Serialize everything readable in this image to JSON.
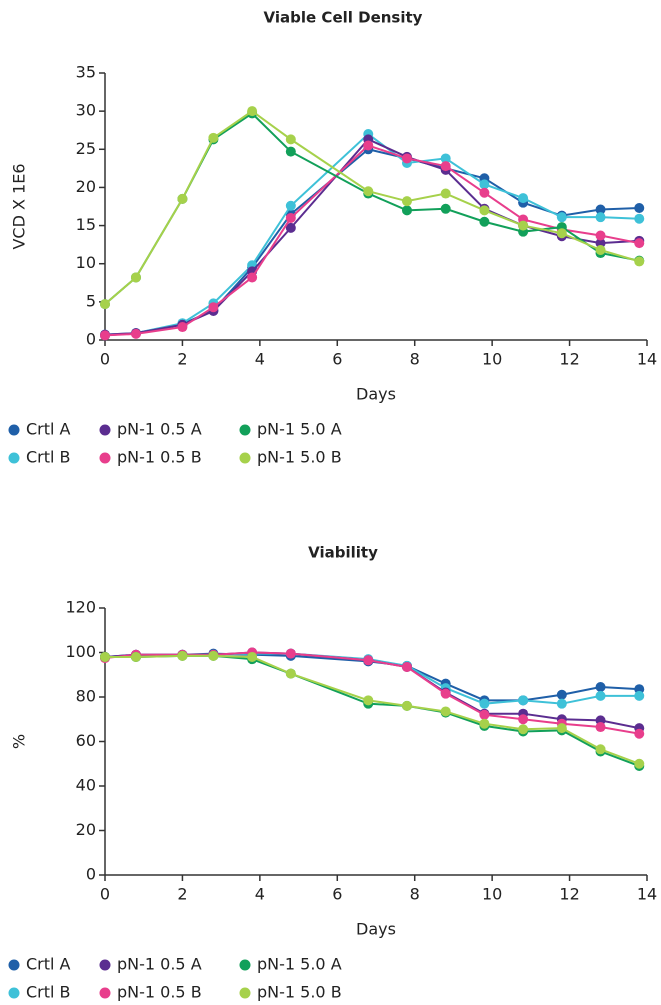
{
  "chart_data": [
    {
      "type": "line",
      "title": "Viable Cell Density",
      "x_label": "Days",
      "y_label": "VCD X 1E6",
      "x": [
        0,
        0.8,
        2,
        2.8,
        3.8,
        4.8,
        6.8,
        7.8,
        8.8,
        9.8,
        10.8,
        11.8,
        12.8,
        13.8
      ],
      "xlim": [
        0,
        14
      ],
      "xticks": [
        0,
        2,
        4,
        6,
        8,
        10,
        12,
        14
      ],
      "ylim": [
        0,
        35
      ],
      "yticks": [
        0,
        5,
        10,
        15,
        20,
        25,
        30,
        35
      ],
      "series": [
        {
          "name": "Crtl A",
          "color": "#1f5fa8",
          "values": [
            0.6,
            0.9,
            2.1,
            3.9,
            9.5,
            16.5,
            25.0,
            23.8,
            22.5,
            21.2,
            18.0,
            16.3,
            17.1,
            17.3
          ]
        },
        {
          "name": "Crtl B",
          "color": "#3ec1d8",
          "values": [
            0.7,
            0.9,
            2.2,
            4.8,
            9.8,
            17.6,
            27.0,
            23.2,
            23.8,
            20.4,
            18.6,
            16.1,
            16.1,
            15.9
          ]
        },
        {
          "name": "pN-1 0.5 A",
          "color": "#5b2d90",
          "values": [
            0.7,
            0.9,
            2.0,
            3.8,
            9.0,
            14.7,
            26.3,
            24.0,
            22.3,
            17.2,
            15.0,
            13.6,
            12.7,
            13.0
          ]
        },
        {
          "name": "pN-1 0.5 B",
          "color": "#e83e8c",
          "values": [
            0.6,
            0.8,
            1.7,
            4.3,
            8.2,
            16.0,
            25.5,
            23.8,
            22.8,
            19.3,
            15.8,
            14.5,
            13.7,
            12.7
          ]
        },
        {
          "name": "pN-1 5.0 A",
          "color": "#12a05a",
          "values": [
            4.7,
            8.2,
            18.5,
            26.3,
            29.7,
            24.7,
            19.2,
            17.0,
            17.2,
            15.5,
            14.2,
            14.8,
            11.4,
            10.4
          ]
        },
        {
          "name": "pN-1 5.0 B",
          "color": "#a6d14b",
          "values": [
            4.7,
            8.2,
            18.5,
            26.5,
            30.0,
            26.3,
            19.5,
            18.2,
            19.2,
            17.0,
            15.0,
            14.0,
            11.8,
            10.3
          ]
        }
      ]
    },
    {
      "type": "line",
      "title": "Viability",
      "x_label": "Days",
      "y_label": "%",
      "x": [
        0,
        0.8,
        2,
        2.8,
        3.8,
        4.8,
        6.8,
        7.8,
        8.8,
        9.8,
        10.8,
        11.8,
        12.8,
        13.8
      ],
      "xlim": [
        0,
        14
      ],
      "xticks": [
        0,
        2,
        4,
        6,
        8,
        10,
        12,
        14
      ],
      "ylim": [
        0,
        120
      ],
      "yticks": [
        0,
        20,
        40,
        60,
        80,
        100,
        120
      ],
      "series": [
        {
          "name": "Crtl A",
          "color": "#1f5fa8",
          "values": [
            98,
            99,
            99,
            99.5,
            99,
            98.5,
            96,
            94,
            86,
            78.5,
            78.5,
            81,
            84.5,
            83.5
          ]
        },
        {
          "name": "Crtl B",
          "color": "#3ec1d8",
          "values": [
            98,
            98,
            99,
            99,
            99.5,
            99.5,
            97,
            94,
            84,
            77,
            78.5,
            77,
            80.5,
            80.5
          ]
        },
        {
          "name": "pN-1 0.5 A",
          "color": "#5b2d90",
          "values": [
            98,
            99,
            99,
            99,
            100,
            99.5,
            96.5,
            93.5,
            82,
            72.5,
            72.5,
            70,
            69.5,
            66
          ]
        },
        {
          "name": "pN-1 0.5 B",
          "color": "#e83e8c",
          "values": [
            97.5,
            99,
            99,
            99,
            100,
            99.5,
            96.5,
            93.5,
            81.5,
            72,
            70,
            68,
            66.5,
            63.5
          ]
        },
        {
          "name": "pN-1 5.0 A",
          "color": "#12a05a",
          "values": [
            98,
            98,
            98.5,
            98.5,
            97,
            90.5,
            77,
            76,
            73,
            67,
            64.5,
            65,
            55.5,
            49
          ]
        },
        {
          "name": "pN-1 5.0 B",
          "color": "#a6d14b",
          "values": [
            98,
            98,
            98.5,
            98.5,
            98,
            90.5,
            78.5,
            76,
            73.5,
            68,
            65.5,
            66,
            56.5,
            50
          ]
        }
      ]
    }
  ]
}
